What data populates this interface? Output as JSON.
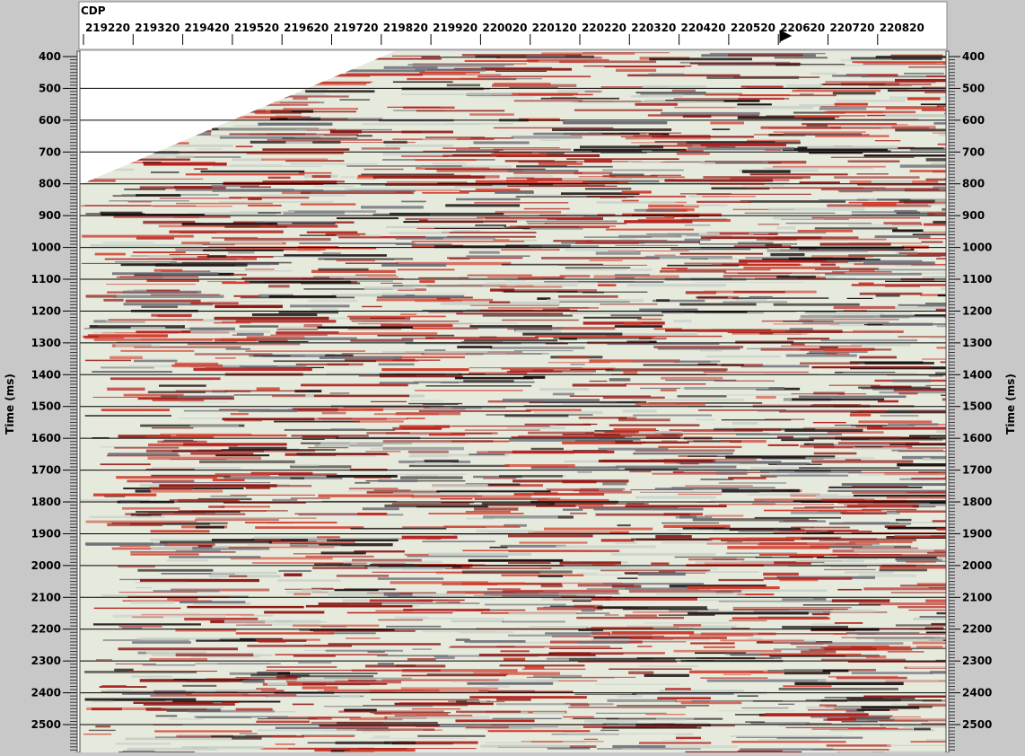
{
  "header": {
    "axis_label": "CDP",
    "cdp_ticks": [
      "219220",
      "219320",
      "219420",
      "219520",
      "219620",
      "219720",
      "219820",
      "219920",
      "220020",
      "220120",
      "220220",
      "220320",
      "220420",
      "220520",
      "220620",
      "220720",
      "220820"
    ]
  },
  "time_axis": {
    "label": "Time (ms)",
    "ticks": [
      "400",
      "500",
      "600",
      "700",
      "800",
      "900",
      "1000",
      "1100",
      "1200",
      "1300",
      "1400",
      "1500",
      "1600",
      "1700",
      "1800",
      "1900",
      "2000",
      "2100",
      "2200",
      "2300",
      "2400",
      "2500"
    ]
  }
}
